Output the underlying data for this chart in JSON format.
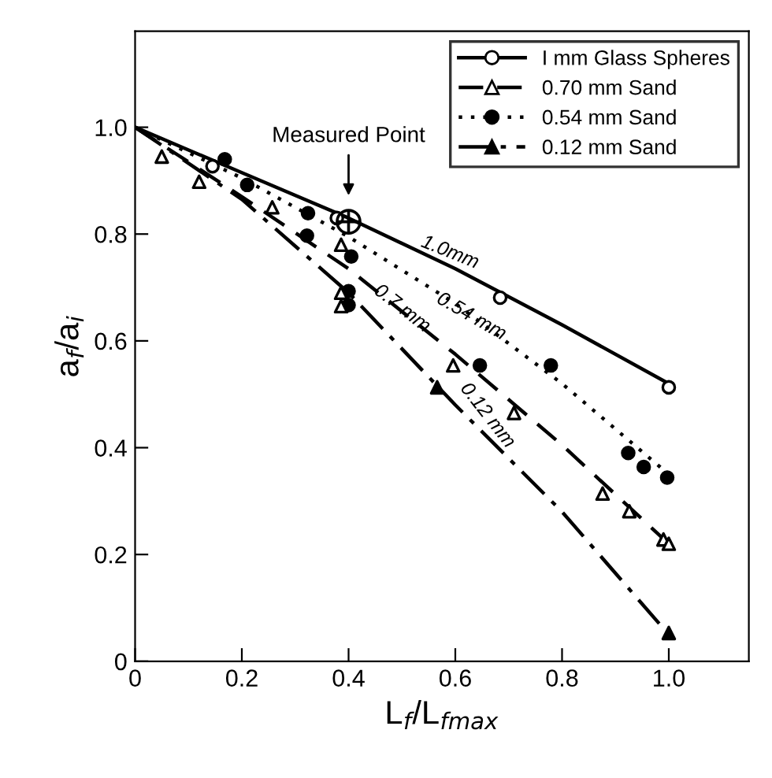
{
  "chart_data": {
    "type": "line",
    "xlabel": "L$_{f}$/L$_{fmax}$",
    "ylabel": "a$_{f}$/a$_{i}$",
    "xlim": [
      0,
      1.15
    ],
    "ylim": [
      0,
      1.18
    ],
    "xticks": [
      0,
      0.2,
      0.4,
      0.6,
      0.8,
      {
        "value": 1,
        "label": "1.0"
      }
    ],
    "yticks": [
      0,
      0.2,
      0.4,
      0.6,
      0.8,
      {
        "value": 1,
        "label": "1.0"
      }
    ],
    "grid": false,
    "legend": "top right",
    "series": [
      {
        "name": "I mm Glass Spheres",
        "color": "#000000",
        "line_style": "solid",
        "marker": "none",
        "x": [
          0,
          0.2,
          0.4,
          0.6,
          0.8,
          1.0
        ],
        "values": [
          1.0,
          0.915,
          0.83,
          0.735,
          0.63,
          0.52
        ]
      },
      {
        "type": "scatter",
        "color": "#ffffff",
        "marker": "circle",
        "x": [
          0.145,
          0.378,
          0.684,
          1.0
        ],
        "values": [
          0.927,
          0.83,
          0.681,
          0.513
        ]
      },
      {
        "name": "0.70 mm Sand",
        "color": "#000000",
        "line_style": "dashed",
        "marker": "none",
        "x": [
          0,
          0.2,
          0.4,
          0.6,
          0.8,
          1.0
        ],
        "values": [
          1.0,
          0.87,
          0.735,
          0.575,
          0.405,
          0.22
        ]
      },
      {
        "type": "scatter",
        "color": "#ffffff",
        "marker": "triangle",
        "x": [
          0.05,
          0.12,
          0.257,
          0.386,
          0.386,
          0.386,
          0.596,
          0.71,
          0.876,
          0.926,
          0.99,
          1.0
        ],
        "values": [
          0.945,
          0.898,
          0.85,
          0.78,
          0.69,
          0.665,
          0.554,
          0.465,
          0.314,
          0.281,
          0.228,
          0.22
        ]
      },
      {
        "name": "0.54 mm Sand",
        "color": "#000000",
        "line_style": "dotted",
        "marker": "none",
        "x": [
          0,
          0.2,
          0.4,
          0.6,
          0.8,
          1.0
        ],
        "values": [
          1.0,
          0.905,
          0.795,
          0.67,
          0.52,
          0.35
        ]
      },
      {
        "type": "scatter",
        "color": "#000000",
        "marker": "circle",
        "x": [
          0.168,
          0.21,
          0.324,
          0.322,
          0.405,
          0.4,
          0.4,
          0.646,
          0.779,
          0.924,
          0.953,
          0.997
        ],
        "values": [
          0.94,
          0.892,
          0.839,
          0.797,
          0.758,
          0.693,
          0.667,
          0.554,
          0.554,
          0.39,
          0.364,
          0.344
        ]
      },
      {
        "name": "0.12 mm Sand",
        "color": "#000000",
        "line_style": "dashdot",
        "marker": "none",
        "x": [
          0,
          0.2,
          0.4,
          0.6,
          0.8,
          1.0
        ],
        "values": [
          1.0,
          0.865,
          0.69,
          0.48,
          0.28,
          0.05
        ]
      },
      {
        "type": "scatter",
        "color": "#000000",
        "marker": "triangle",
        "x": [
          0.566,
          1.0
        ],
        "values": [
          0.513,
          0.053
        ]
      },
      {
        "type": "scatter",
        "color": "#000000",
        "marker": "circle",
        "x": [
          0.4
        ],
        "values": [
          0.823
        ]
      }
    ],
    "annotations": [
      "Measured Point",
      "1.0mm",
      "0.54 mm",
      "0.7 mm",
      "0.12 mm"
    ]
  }
}
